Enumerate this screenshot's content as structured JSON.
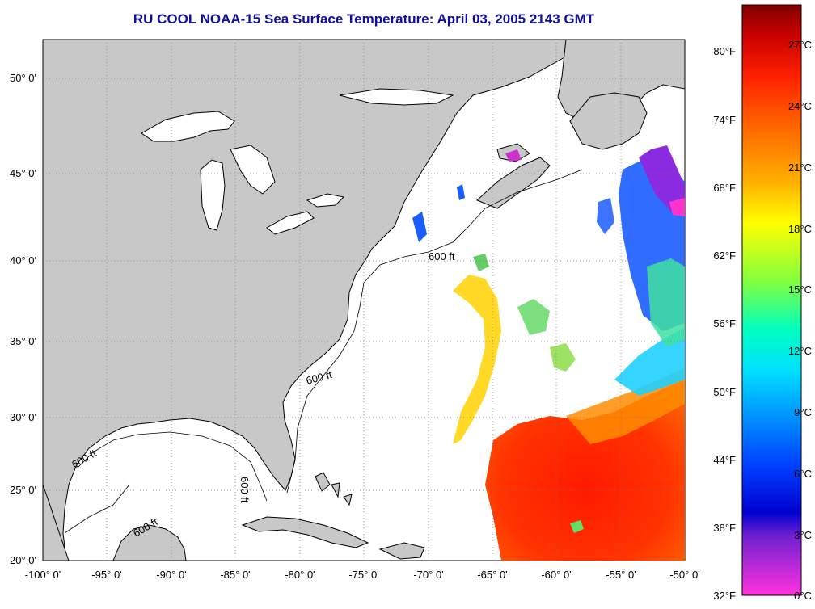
{
  "title": "RU COOL  NOAA-15  Sea Surface Temperature:  April 03, 2005 2143 GMT",
  "lon_ticks": [
    "-100° 0'",
    "-95° 0'",
    "-90° 0'",
    "-85° 0'",
    "-80° 0'",
    "-75° 0'",
    "-70° 0'",
    "-65° 0'",
    "-60° 0'",
    "-55° 0'",
    "-50° 0'"
  ],
  "lat_ticks": [
    "50° 0'",
    "45° 0'",
    "40° 0'",
    "35° 0'",
    "30° 0'",
    "25° 0'",
    "20° 0'"
  ],
  "fahrenheit_scale": [
    "80°F",
    "74°F",
    "68°F",
    "62°F",
    "56°F",
    "50°F",
    "44°F",
    "38°F",
    "32°F"
  ],
  "celsius_scale": [
    "27°C",
    "24°C",
    "21°C",
    "18°C",
    "15°C",
    "12°C",
    "9°C",
    "6°C",
    "3°C",
    "0°C"
  ],
  "depth_contour_label": "600 ft",
  "colors": {
    "land": "#c8c8c8",
    "title": "#1010a0",
    "scale_top": "#8b0000",
    "scale_bottom": "#ff33cc"
  }
}
